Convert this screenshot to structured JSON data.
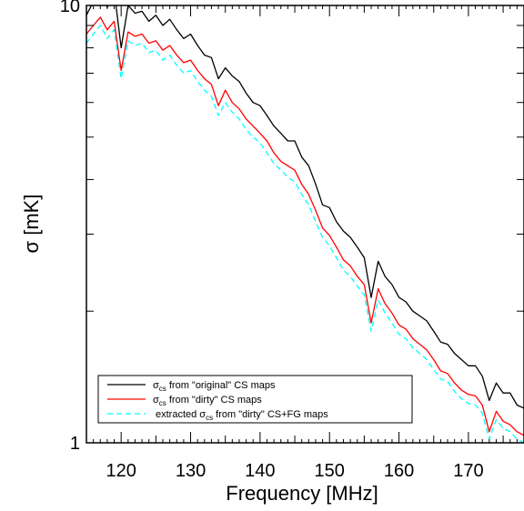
{
  "chart_data": {
    "type": "line",
    "title": "",
    "xlabel": "Frequency [MHz]",
    "ylabel": "σ [mK]",
    "xlim": [
      115,
      178
    ],
    "ylim": [
      1,
      10
    ],
    "yscale": "log",
    "grid": false,
    "legend_position": "bottom-left",
    "x_ticks": [
      120,
      130,
      140,
      150,
      160,
      170
    ],
    "x_tick_labels": [
      "120",
      "130",
      "140",
      "150",
      "160",
      "170"
    ],
    "y_ticks": [
      1,
      10
    ],
    "y_tick_labels": [
      "1",
      "10"
    ],
    "x": [
      115,
      116,
      117,
      118,
      119,
      120,
      121,
      122,
      123,
      124,
      125,
      126,
      127,
      128,
      129,
      130,
      131,
      132,
      133,
      134,
      135,
      136,
      137,
      138,
      139,
      140,
      141,
      142,
      143,
      144,
      145,
      146,
      147,
      148,
      149,
      150,
      151,
      152,
      153,
      154,
      155,
      156,
      157,
      158,
      159,
      160,
      161,
      162,
      163,
      164,
      165,
      166,
      167,
      168,
      169,
      170,
      171,
      172,
      173,
      174,
      175,
      176,
      177,
      178
    ],
    "series": [
      {
        "name": "σcs from \"original\" CS maps",
        "name_parts": [
          "σ",
          "cs",
          " from \"original\" CS maps"
        ],
        "color": "#000000",
        "dash": "solid",
        "values": [
          9.5,
          10.2,
          10.9,
          9.9,
          10.8,
          8.0,
          10.0,
          9.6,
          9.7,
          9.2,
          9.5,
          9.0,
          9.3,
          8.8,
          8.4,
          8.6,
          8.1,
          7.7,
          7.6,
          6.8,
          7.2,
          6.9,
          6.7,
          6.3,
          6.0,
          5.9,
          5.6,
          5.3,
          5.1,
          4.9,
          4.9,
          4.5,
          4.3,
          3.9,
          3.5,
          3.45,
          3.2,
          3.05,
          2.95,
          2.8,
          2.65,
          2.15,
          2.6,
          2.4,
          2.3,
          2.15,
          2.1,
          2.0,
          1.95,
          1.9,
          1.8,
          1.7,
          1.68,
          1.6,
          1.55,
          1.5,
          1.5,
          1.42,
          1.25,
          1.37,
          1.3,
          1.3,
          1.22,
          1.2
        ]
      },
      {
        "name": "σcs from \"dirty\" CS maps",
        "name_parts": [
          "σ",
          "cs",
          " from \"dirty\" CS maps"
        ],
        "color": "#ff0000",
        "dash": "solid",
        "values": [
          8.6,
          9.0,
          9.4,
          8.8,
          9.2,
          7.1,
          8.7,
          8.5,
          8.6,
          8.2,
          8.3,
          7.9,
          8.1,
          7.7,
          7.4,
          7.5,
          7.1,
          6.8,
          6.6,
          5.9,
          6.4,
          6.0,
          5.8,
          5.5,
          5.3,
          5.1,
          4.9,
          4.6,
          4.4,
          4.3,
          4.2,
          3.9,
          3.7,
          3.4,
          3.1,
          2.98,
          2.8,
          2.62,
          2.54,
          2.4,
          2.3,
          1.88,
          2.25,
          2.08,
          1.98,
          1.86,
          1.82,
          1.73,
          1.68,
          1.63,
          1.55,
          1.46,
          1.44,
          1.37,
          1.32,
          1.29,
          1.28,
          1.22,
          1.06,
          1.18,
          1.12,
          1.1,
          1.06,
          1.04
        ]
      },
      {
        "name": "extracted σcs from \"dirty\" CS+FG maps",
        "name_parts": [
          "extracted σ",
          "cs",
          " from \"dirty\" CS+FG maps"
        ],
        "color": "#00ffff",
        "dash": "dashed",
        "values": [
          8.2,
          8.6,
          9.0,
          8.4,
          8.8,
          6.8,
          8.3,
          8.1,
          8.2,
          7.8,
          7.9,
          7.5,
          7.7,
          7.3,
          7.0,
          7.1,
          6.7,
          6.4,
          6.2,
          5.6,
          6.0,
          5.7,
          5.5,
          5.2,
          5.0,
          4.85,
          4.6,
          4.35,
          4.2,
          4.05,
          3.95,
          3.7,
          3.5,
          3.2,
          2.95,
          2.82,
          2.65,
          2.48,
          2.4,
          2.28,
          2.18,
          1.8,
          2.12,
          1.98,
          1.88,
          1.77,
          1.73,
          1.65,
          1.6,
          1.55,
          1.47,
          1.4,
          1.38,
          1.31,
          1.26,
          1.23,
          1.22,
          1.17,
          1.02,
          1.13,
          1.08,
          1.06,
          1.02,
          1.0
        ]
      }
    ]
  }
}
